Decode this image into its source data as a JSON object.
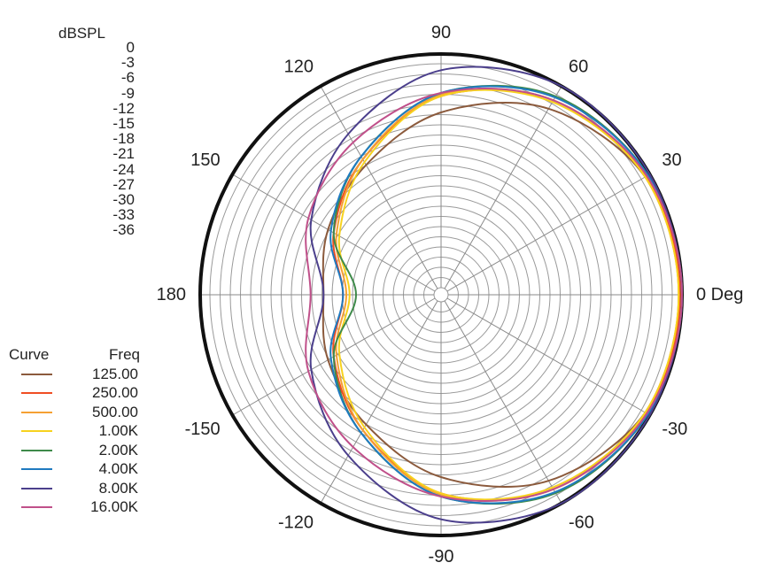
{
  "chart_data": {
    "type": "polar",
    "unit_label": "dBSPL",
    "radial_range": [
      -36,
      0
    ],
    "radial_ticks": [
      0,
      -3,
      -6,
      -9,
      -12,
      -15,
      -18,
      -21,
      -24,
      -27,
      -30,
      -33,
      -36
    ],
    "angle_labels": [
      "0 Deg",
      "30",
      "60",
      "90",
      "120",
      "150",
      "180",
      "-150",
      "-120",
      "-90",
      "-60",
      "-30"
    ],
    "angles_deg": [
      0,
      30,
      60,
      90,
      120,
      150,
      180,
      -150,
      -120,
      -90,
      -60,
      -30
    ],
    "legend_title_curve": "Curve",
    "legend_title_freq": "Freq",
    "series": [
      {
        "name": "125.00",
        "color": "#8b5a3c",
        "radius_db": [
          0,
          -0.8,
          -4,
          -9,
          -14,
          -17,
          -19,
          -17,
          -14,
          -9,
          -4,
          -0.8
        ]
      },
      {
        "name": "250.00",
        "color": "#f04e23",
        "radius_db": [
          -0.3,
          -0.6,
          -2.5,
          -6.5,
          -13,
          -18,
          -22,
          -18,
          -13,
          -6.5,
          -2.5,
          -0.6
        ]
      },
      {
        "name": "500.00",
        "color": "#f5a033",
        "radius_db": [
          -0.5,
          -0.8,
          -2.5,
          -6.3,
          -13,
          -18.5,
          -22.5,
          -18.5,
          -13,
          -6.3,
          -2.5,
          -0.8
        ]
      },
      {
        "name": "1.00K",
        "color": "#f7d21e",
        "radius_db": [
          -0.5,
          -0.8,
          -2.8,
          -6.5,
          -13.5,
          -19,
          -23,
          -19,
          -13.5,
          -6.5,
          -2.8,
          -0.8
        ]
      },
      {
        "name": "2.00K",
        "color": "#3e8a4a",
        "radius_db": [
          0,
          -0.3,
          -1.8,
          -6,
          -12.5,
          -18,
          -24,
          -18,
          -12.5,
          -6,
          -1.8,
          -0.3
        ]
      },
      {
        "name": "4.00K",
        "color": "#1f7ac0",
        "radius_db": [
          0,
          -0.3,
          -2,
          -6,
          -12.5,
          -17.5,
          -22,
          -17.5,
          -12.5,
          -6,
          -2,
          -0.3
        ]
      },
      {
        "name": "8.00K",
        "color": "#4b3f8c",
        "radius_db": [
          0,
          0,
          0,
          -2.5,
          -8.5,
          -14,
          -19,
          -14,
          -8.5,
          -2.5,
          0,
          0
        ]
      },
      {
        "name": "16.00K",
        "color": "#c0508a",
        "radius_db": [
          0,
          -0.5,
          -2.5,
          -6,
          -10,
          -13.5,
          -17,
          -13.5,
          -10,
          -6,
          -2.5,
          -0.5
        ]
      }
    ]
  }
}
